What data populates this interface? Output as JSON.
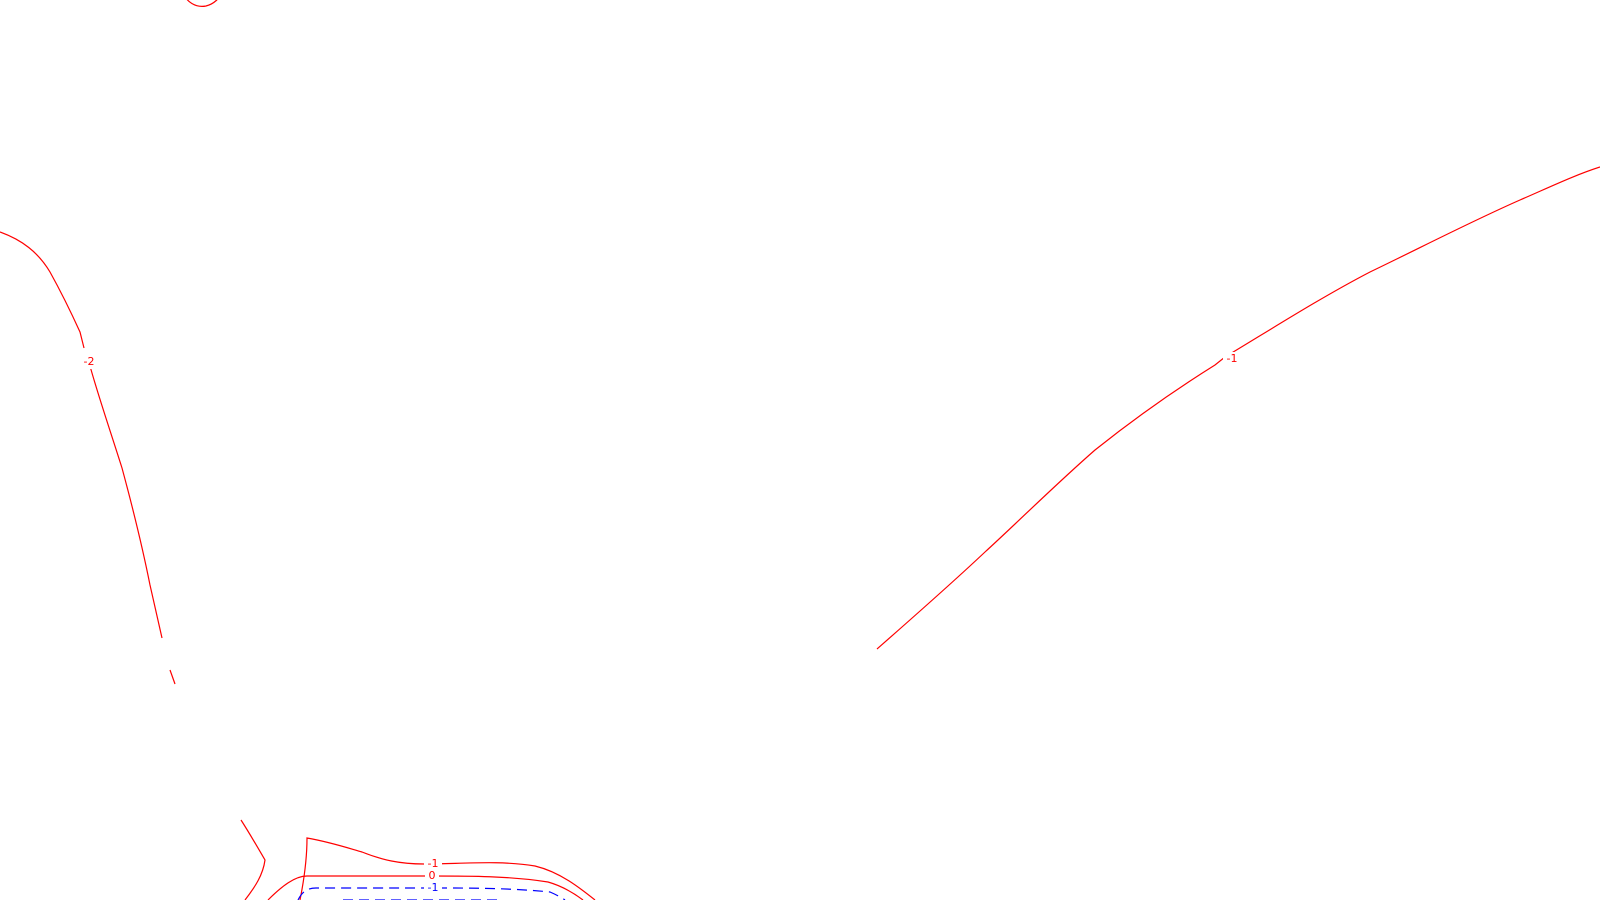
{
  "map": {
    "colors": {
      "background": "#ffffff",
      "positive_contour": "#ff0000",
      "negative_contour": "#0000ff"
    },
    "contour_labels": {
      "left_ridge": "-2",
      "right_slope": "-1",
      "bottom_outer": "-1",
      "bottom_middle": "0",
      "bottom_inner": "-1"
    }
  }
}
